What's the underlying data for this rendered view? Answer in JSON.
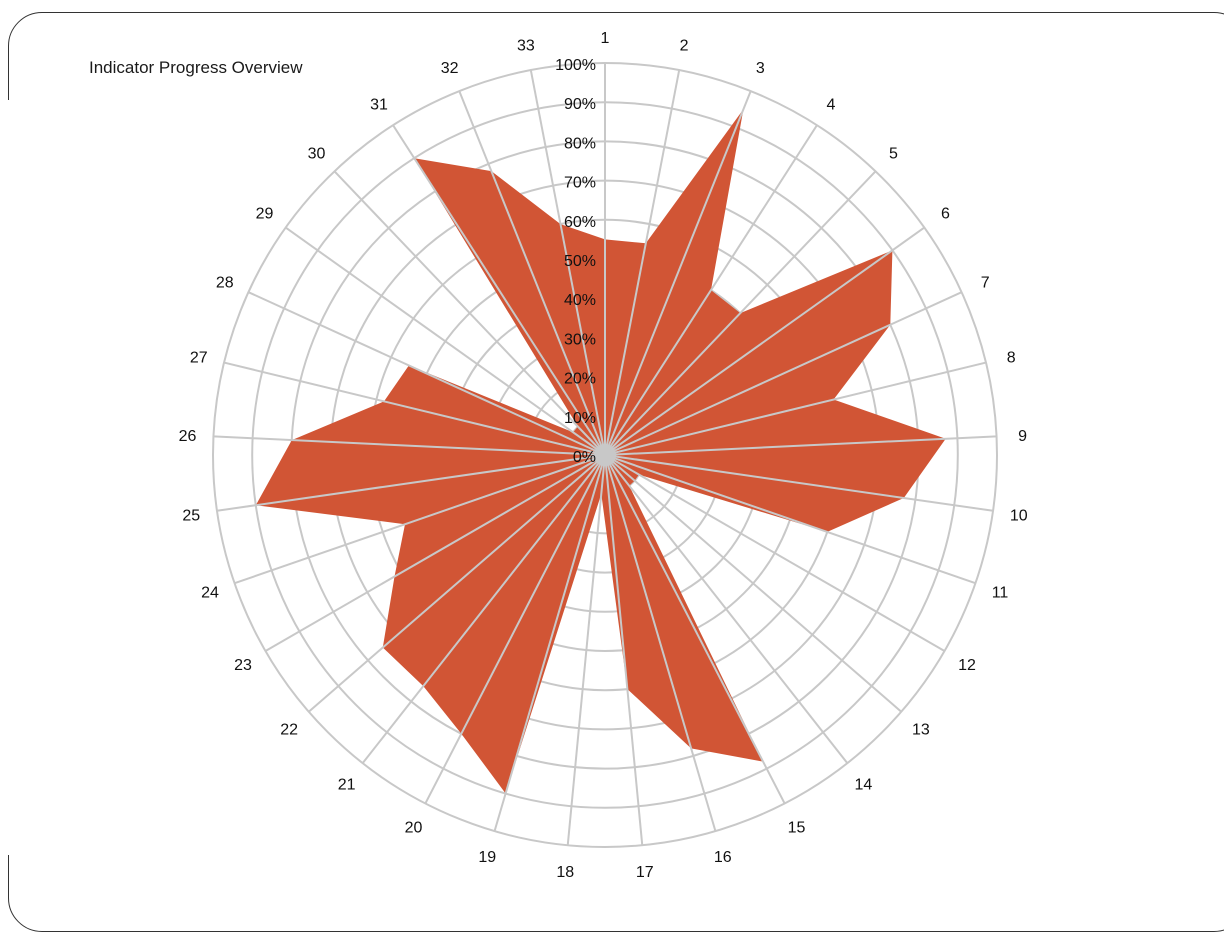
{
  "title": "Indicator Progress Overview",
  "colors": {
    "area": "#d15535",
    "grid": "#c8c8c8",
    "background": "#ffffff"
  },
  "chart_data": {
    "type": "radar",
    "title": "Indicator Progress Overview",
    "categories": [
      "1",
      "2",
      "3",
      "4",
      "5",
      "6",
      "7",
      "8",
      "9",
      "10",
      "11",
      "12",
      "13",
      "14",
      "15",
      "16",
      "17",
      "18",
      "19",
      "20",
      "21",
      "22",
      "23",
      "24",
      "25",
      "26",
      "27",
      "28",
      "29",
      "30",
      "31",
      "32",
      "33"
    ],
    "values": [
      55,
      55,
      95,
      50,
      50,
      90,
      80,
      60,
      87,
      77,
      60,
      10,
      10,
      10,
      88,
      78,
      60,
      10,
      90,
      80,
      75,
      75,
      62,
      54,
      90,
      80,
      58,
      55,
      10,
      10,
      90,
      78,
      60
    ],
    "value_unit": "%",
    "axis_ticks": [
      "0%",
      "10%",
      "20%",
      "30%",
      "40%",
      "50%",
      "60%",
      "70%",
      "80%",
      "90%",
      "100%"
    ],
    "rlim": [
      0,
      100
    ],
    "grid": true,
    "legend": "none"
  }
}
